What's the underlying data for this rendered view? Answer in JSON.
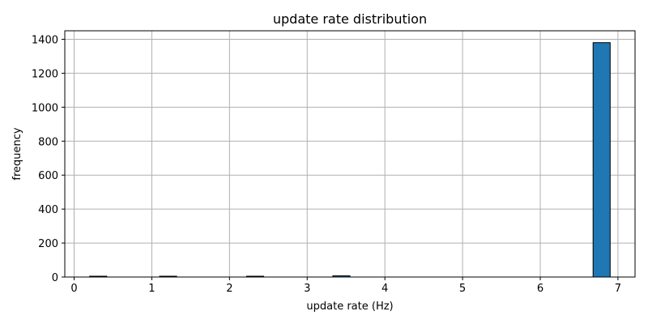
{
  "chart_data": {
    "type": "bar",
    "title": "update rate distribution",
    "xlabel": "update rate (Hz)",
    "ylabel": "frequency",
    "xlim": [
      -0.12,
      7.22
    ],
    "ylim": [
      0,
      1450
    ],
    "grid": true,
    "xticks": [
      0,
      1,
      2,
      3,
      4,
      5,
      6,
      7
    ],
    "yticks": [
      0,
      200,
      400,
      600,
      800,
      1000,
      1200,
      1400
    ],
    "bar_color": "#1f77b4",
    "bins": [
      {
        "x0": 0.2,
        "x1": 0.42,
        "value": 3
      },
      {
        "x0": 1.1,
        "x1": 1.32,
        "value": 3
      },
      {
        "x0": 2.22,
        "x1": 2.44,
        "value": 3
      },
      {
        "x0": 3.33,
        "x1": 3.55,
        "value": 7
      },
      {
        "x0": 6.68,
        "x1": 6.9,
        "value": 1380
      }
    ]
  }
}
